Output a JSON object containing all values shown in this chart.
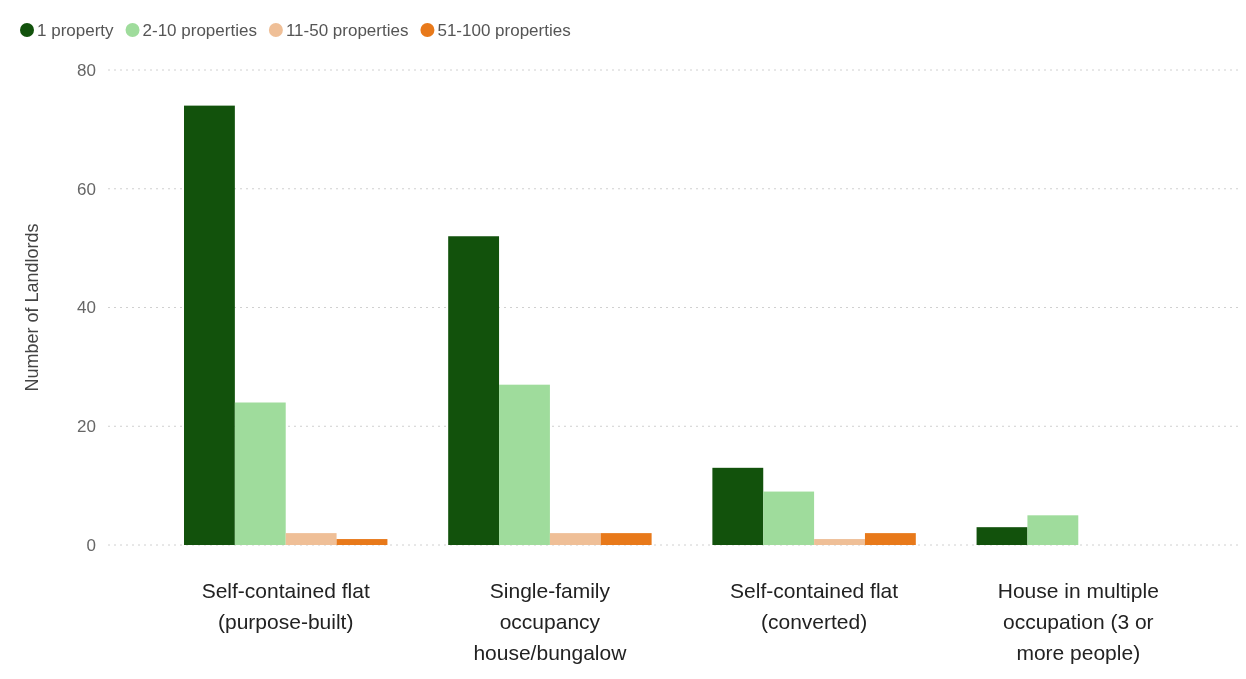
{
  "chart_data": {
    "type": "bar",
    "ylabel": "Number of Landlords",
    "categories": [
      "Self-contained flat (purpose-built)",
      "Single-family occupancy house/bungalow",
      "Self-contained flat (converted)",
      "House in multiple occupation (3 or more people)"
    ],
    "series": [
      {
        "name": "1 property",
        "color": "#12520c",
        "values": [
          74,
          52,
          13,
          3
        ]
      },
      {
        "name": "2-10 properties",
        "color": "#9fdc9c",
        "values": [
          24,
          27,
          9,
          5
        ]
      },
      {
        "name": "11-50 properties",
        "color": "#efbf97",
        "values": [
          2,
          2,
          1,
          null
        ]
      },
      {
        "name": "51-100 properties",
        "color": "#e8791a",
        "values": [
          1,
          2,
          2,
          null
        ]
      }
    ],
    "ylim": [
      0,
      80
    ],
    "yticks": [
      0,
      20,
      40,
      60,
      80
    ],
    "grid": "y",
    "legend": "top left"
  }
}
